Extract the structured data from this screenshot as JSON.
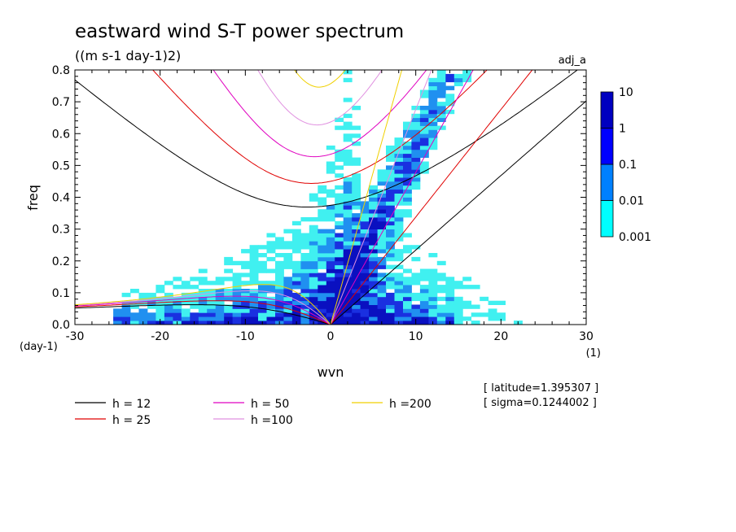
{
  "chart_data": {
    "type": "heatmap",
    "title": "eastward wind S-T power spectrum",
    "subtitle": "((m s-1 day-1)2)",
    "run_label": "adj_a",
    "xlabel": "wvn",
    "ylabel": "freq",
    "x_unit": "(1)",
    "y_unit": "(day-1)",
    "xlim": [
      -30,
      30
    ],
    "ylim": [
      0,
      0.8
    ],
    "x_ticks": [
      -30,
      -20,
      -10,
      0,
      10,
      20,
      30
    ],
    "x_tick_labels": [
      "-30",
      "-20",
      "-10",
      "0",
      "10",
      "20",
      "30"
    ],
    "y_ticks": [
      0,
      0.1,
      0.2,
      0.3,
      0.4,
      0.5,
      0.6,
      0.7,
      0.8
    ],
    "y_tick_labels": [
      "0.0",
      "0.1",
      "0.2",
      "0.3",
      "0.4",
      "0.5",
      "0.6",
      "0.7",
      "0.8"
    ],
    "colorbar": {
      "levels": [
        "0.001",
        "0.01",
        "0.1",
        "1",
        "10"
      ],
      "colors": [
        "#00ffff",
        "#0080ff",
        "#0000ff",
        "#0000c0",
        "#4000c0"
      ]
    },
    "shading_colors": {
      "low": "#40f0f0",
      "mid": "#2090f0",
      "high": "#1a30e0",
      "peak": "#0a10c0"
    },
    "dispersion_curves": [
      {
        "h": 12,
        "label": "h = 12",
        "color": "#000000"
      },
      {
        "h": 25,
        "label": "h = 25",
        "color": "#e00000"
      },
      {
        "h": 50,
        "label": "h = 50",
        "color": "#e000c0"
      },
      {
        "h": 100,
        "label": "h =100",
        "color": "#e090e0"
      },
      {
        "h": 200,
        "label": "h =200",
        "color": "#f0d000"
      }
    ],
    "info": {
      "latitude": "[ latitude=1.395307 ]",
      "sigma": "[ sigma=0.1244002 ]"
    }
  }
}
